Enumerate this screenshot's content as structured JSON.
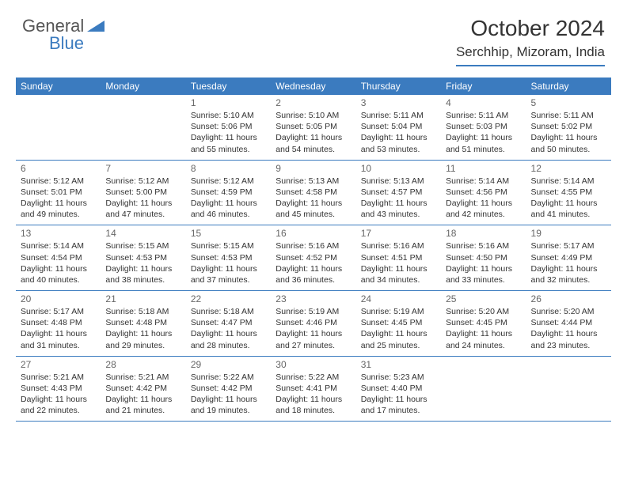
{
  "brand": {
    "part1": "General",
    "part2": "Blue"
  },
  "title": "October 2024",
  "location": "Serchhip, Mizoram, India",
  "colors": {
    "accent": "#3b7bbf",
    "text": "#333333",
    "muted": "#666666",
    "bg": "#ffffff"
  },
  "typography": {
    "title_fontsize": 28,
    "location_fontsize": 17,
    "header_fontsize": 12,
    "cell_fontsize": 10.5,
    "daynum_fontsize": 12
  },
  "columns": [
    "Sunday",
    "Monday",
    "Tuesday",
    "Wednesday",
    "Thursday",
    "Friday",
    "Saturday"
  ],
  "weeks": [
    [
      null,
      null,
      {
        "d": "1",
        "sr": "5:10 AM",
        "ss": "5:06 PM",
        "dl": "11 hours and 55 minutes."
      },
      {
        "d": "2",
        "sr": "5:10 AM",
        "ss": "5:05 PM",
        "dl": "11 hours and 54 minutes."
      },
      {
        "d": "3",
        "sr": "5:11 AM",
        "ss": "5:04 PM",
        "dl": "11 hours and 53 minutes."
      },
      {
        "d": "4",
        "sr": "5:11 AM",
        "ss": "5:03 PM",
        "dl": "11 hours and 51 minutes."
      },
      {
        "d": "5",
        "sr": "5:11 AM",
        "ss": "5:02 PM",
        "dl": "11 hours and 50 minutes."
      }
    ],
    [
      {
        "d": "6",
        "sr": "5:12 AM",
        "ss": "5:01 PM",
        "dl": "11 hours and 49 minutes."
      },
      {
        "d": "7",
        "sr": "5:12 AM",
        "ss": "5:00 PM",
        "dl": "11 hours and 47 minutes."
      },
      {
        "d": "8",
        "sr": "5:12 AM",
        "ss": "4:59 PM",
        "dl": "11 hours and 46 minutes."
      },
      {
        "d": "9",
        "sr": "5:13 AM",
        "ss": "4:58 PM",
        "dl": "11 hours and 45 minutes."
      },
      {
        "d": "10",
        "sr": "5:13 AM",
        "ss": "4:57 PM",
        "dl": "11 hours and 43 minutes."
      },
      {
        "d": "11",
        "sr": "5:14 AM",
        "ss": "4:56 PM",
        "dl": "11 hours and 42 minutes."
      },
      {
        "d": "12",
        "sr": "5:14 AM",
        "ss": "4:55 PM",
        "dl": "11 hours and 41 minutes."
      }
    ],
    [
      {
        "d": "13",
        "sr": "5:14 AM",
        "ss": "4:54 PM",
        "dl": "11 hours and 40 minutes."
      },
      {
        "d": "14",
        "sr": "5:15 AM",
        "ss": "4:53 PM",
        "dl": "11 hours and 38 minutes."
      },
      {
        "d": "15",
        "sr": "5:15 AM",
        "ss": "4:53 PM",
        "dl": "11 hours and 37 minutes."
      },
      {
        "d": "16",
        "sr": "5:16 AM",
        "ss": "4:52 PM",
        "dl": "11 hours and 36 minutes."
      },
      {
        "d": "17",
        "sr": "5:16 AM",
        "ss": "4:51 PM",
        "dl": "11 hours and 34 minutes."
      },
      {
        "d": "18",
        "sr": "5:16 AM",
        "ss": "4:50 PM",
        "dl": "11 hours and 33 minutes."
      },
      {
        "d": "19",
        "sr": "5:17 AM",
        "ss": "4:49 PM",
        "dl": "11 hours and 32 minutes."
      }
    ],
    [
      {
        "d": "20",
        "sr": "5:17 AM",
        "ss": "4:48 PM",
        "dl": "11 hours and 31 minutes."
      },
      {
        "d": "21",
        "sr": "5:18 AM",
        "ss": "4:48 PM",
        "dl": "11 hours and 29 minutes."
      },
      {
        "d": "22",
        "sr": "5:18 AM",
        "ss": "4:47 PM",
        "dl": "11 hours and 28 minutes."
      },
      {
        "d": "23",
        "sr": "5:19 AM",
        "ss": "4:46 PM",
        "dl": "11 hours and 27 minutes."
      },
      {
        "d": "24",
        "sr": "5:19 AM",
        "ss": "4:45 PM",
        "dl": "11 hours and 25 minutes."
      },
      {
        "d": "25",
        "sr": "5:20 AM",
        "ss": "4:45 PM",
        "dl": "11 hours and 24 minutes."
      },
      {
        "d": "26",
        "sr": "5:20 AM",
        "ss": "4:44 PM",
        "dl": "11 hours and 23 minutes."
      }
    ],
    [
      {
        "d": "27",
        "sr": "5:21 AM",
        "ss": "4:43 PM",
        "dl": "11 hours and 22 minutes."
      },
      {
        "d": "28",
        "sr": "5:21 AM",
        "ss": "4:42 PM",
        "dl": "11 hours and 21 minutes."
      },
      {
        "d": "29",
        "sr": "5:22 AM",
        "ss": "4:42 PM",
        "dl": "11 hours and 19 minutes."
      },
      {
        "d": "30",
        "sr": "5:22 AM",
        "ss": "4:41 PM",
        "dl": "11 hours and 18 minutes."
      },
      {
        "d": "31",
        "sr": "5:23 AM",
        "ss": "4:40 PM",
        "dl": "11 hours and 17 minutes."
      },
      null,
      null
    ]
  ],
  "labels": {
    "sunrise": "Sunrise:",
    "sunset": "Sunset:",
    "daylight": "Daylight:"
  }
}
